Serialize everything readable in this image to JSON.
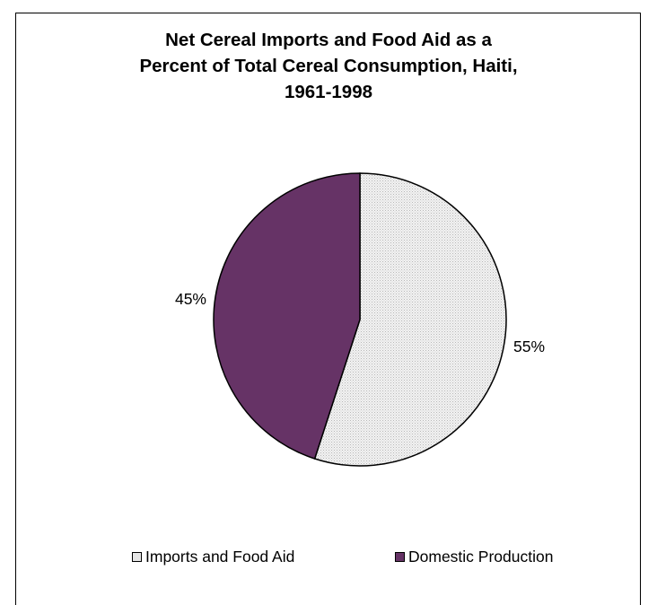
{
  "chart_data": {
    "type": "pie",
    "title_lines": [
      "Net Cereal Imports and Food Aid as a",
      "Percent of Total Cereal Consumption, Haiti,",
      "1961-1998"
    ],
    "slices": [
      {
        "label": "Imports and Food Aid",
        "value": 55,
        "value_label": "55%",
        "color": "#e6e6e6",
        "pattern": "dotted"
      },
      {
        "label": "Domestic Production",
        "value": 45,
        "value_label": "45%",
        "color": "#663366"
      }
    ],
    "legend_position": "bottom"
  }
}
